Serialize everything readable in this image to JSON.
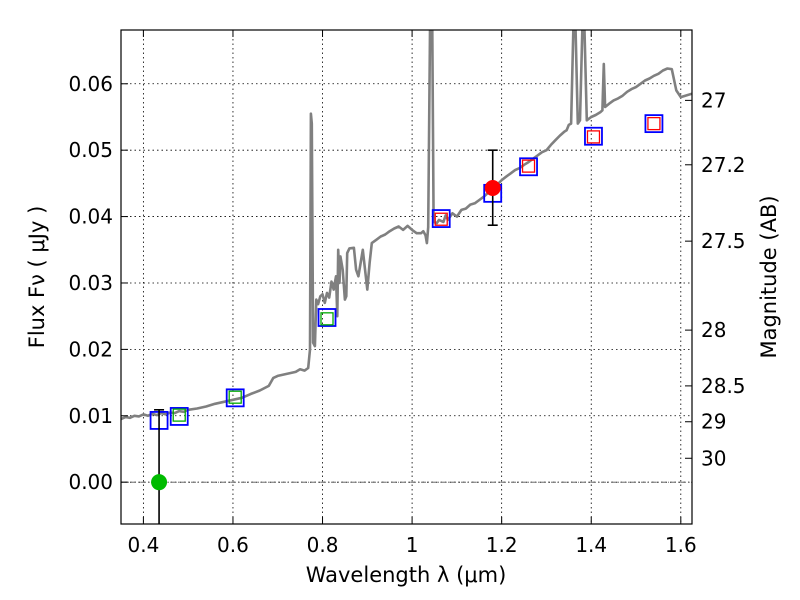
{
  "chart_data": {
    "type": "scatter",
    "xlabel": "Wavelength  λ (μm)",
    "ylabel": "Flux  Fν  ( μJy )",
    "ylabel2": "Magnitude (AB)",
    "xlim": [
      0.35,
      1.625
    ],
    "ylim": [
      -0.0063,
      0.0681
    ],
    "grid": true,
    "x_ticks": [
      0.4,
      0.6,
      0.8,
      1.0,
      1.2,
      1.4,
      1.6
    ],
    "x_tick_labels": [
      "0.4",
      "0.6",
      "0.8",
      "1",
      "1.2",
      "1.4",
      "1.6"
    ],
    "y_ticks": [
      0.0,
      0.01,
      0.02,
      0.03,
      0.04,
      0.05,
      0.06
    ],
    "y_tick_labels": [
      "0.00",
      "0.01",
      "0.02",
      "0.03",
      "0.04",
      "0.05",
      "0.06"
    ],
    "mag_ticks": [
      {
        "label": "27",
        "flux": 0.0575
      },
      {
        "label": "27.2",
        "flux": 0.0478
      },
      {
        "label": "27.5",
        "flux": 0.0363
      },
      {
        "label": "28",
        "flux": 0.0229
      },
      {
        "label": "28.5",
        "flux": 0.0145
      },
      {
        "label": "29",
        "flux": 0.0091
      },
      {
        "label": "30",
        "flux": 0.0036
      }
    ],
    "series": [
      {
        "name": "model spectrum",
        "style": "line",
        "color": "#808080",
        "points": [
          [
            0.35,
            0.0095
          ],
          [
            0.36,
            0.0098
          ],
          [
            0.37,
            0.0097
          ],
          [
            0.38,
            0.01
          ],
          [
            0.39,
            0.0099
          ],
          [
            0.4,
            0.0102
          ],
          [
            0.41,
            0.01
          ],
          [
            0.42,
            0.0103
          ],
          [
            0.43,
            0.0101
          ],
          [
            0.44,
            0.0104
          ],
          [
            0.45,
            0.0102
          ],
          [
            0.46,
            0.0105
          ],
          [
            0.47,
            0.0104
          ],
          [
            0.48,
            0.0107
          ],
          [
            0.49,
            0.0106
          ],
          [
            0.5,
            0.0109
          ],
          [
            0.52,
            0.0111
          ],
          [
            0.54,
            0.0114
          ],
          [
            0.56,
            0.0118
          ],
          [
            0.58,
            0.0121
          ],
          [
            0.6,
            0.0124
          ],
          [
            0.62,
            0.0127
          ],
          [
            0.64,
            0.0133
          ],
          [
            0.66,
            0.0138
          ],
          [
            0.68,
            0.0145
          ],
          [
            0.69,
            0.0157
          ],
          [
            0.7,
            0.016
          ],
          [
            0.72,
            0.0163
          ],
          [
            0.74,
            0.0166
          ],
          [
            0.75,
            0.017
          ],
          [
            0.76,
            0.0168
          ],
          [
            0.768,
            0.0172
          ],
          [
            0.772,
            0.02
          ],
          [
            0.774,
            0.0555
          ],
          [
            0.776,
            0.054
          ],
          [
            0.779,
            0.021
          ],
          [
            0.783,
            0.0205
          ],
          [
            0.786,
            0.0275
          ],
          [
            0.79,
            0.0268
          ],
          [
            0.795,
            0.028
          ],
          [
            0.8,
            0.0283
          ],
          [
            0.805,
            0.027
          ],
          [
            0.81,
            0.0285
          ],
          [
            0.815,
            0.0278
          ],
          [
            0.82,
            0.0302
          ],
          [
            0.825,
            0.029
          ],
          [
            0.83,
            0.031
          ],
          [
            0.833,
            0.025
          ],
          [
            0.835,
            0.035
          ],
          [
            0.838,
            0.03
          ],
          [
            0.84,
            0.034
          ],
          [
            0.845,
            0.032
          ],
          [
            0.85,
            0.0275
          ],
          [
            0.853,
            0.028
          ],
          [
            0.855,
            0.0345
          ],
          [
            0.86,
            0.0352
          ],
          [
            0.87,
            0.0353
          ],
          [
            0.875,
            0.032
          ],
          [
            0.88,
            0.031
          ],
          [
            0.885,
            0.033
          ],
          [
            0.89,
            0.035
          ],
          [
            0.9,
            0.029
          ],
          [
            0.905,
            0.033
          ],
          [
            0.91,
            0.036
          ],
          [
            0.92,
            0.0365
          ],
          [
            0.93,
            0.037
          ],
          [
            0.94,
            0.0373
          ],
          [
            0.95,
            0.0378
          ],
          [
            0.96,
            0.0382
          ],
          [
            0.97,
            0.0385
          ],
          [
            0.98,
            0.038
          ],
          [
            0.99,
            0.0386
          ],
          [
            1.0,
            0.038
          ],
          [
            1.01,
            0.0375
          ],
          [
            1.02,
            0.0375
          ],
          [
            1.025,
            0.0378
          ],
          [
            1.03,
            0.0372
          ],
          [
            1.033,
            0.036
          ],
          [
            1.036,
            0.0384
          ],
          [
            1.04,
            0.068
          ],
          [
            1.045,
            0.068
          ],
          [
            1.048,
            0.0392
          ],
          [
            1.055,
            0.039
          ],
          [
            1.06,
            0.0395
          ],
          [
            1.07,
            0.0392
          ],
          [
            1.075,
            0.0402
          ],
          [
            1.08,
            0.0395
          ],
          [
            1.09,
            0.0405
          ],
          [
            1.1,
            0.04
          ],
          [
            1.11,
            0.041
          ],
          [
            1.12,
            0.0412
          ],
          [
            1.13,
            0.0418
          ],
          [
            1.14,
            0.042
          ],
          [
            1.15,
            0.0425
          ],
          [
            1.16,
            0.043
          ],
          [
            1.17,
            0.0436
          ],
          [
            1.18,
            0.0442
          ],
          [
            1.19,
            0.0448
          ],
          [
            1.2,
            0.0455
          ],
          [
            1.21,
            0.046
          ],
          [
            1.22,
            0.0465
          ],
          [
            1.23,
            0.047
          ],
          [
            1.24,
            0.0473
          ],
          [
            1.25,
            0.0478
          ],
          [
            1.26,
            0.0482
          ],
          [
            1.27,
            0.0487
          ],
          [
            1.28,
            0.0492
          ],
          [
            1.29,
            0.0497
          ],
          [
            1.3,
            0.05
          ],
          [
            1.31,
            0.0508
          ],
          [
            1.32,
            0.0515
          ],
          [
            1.33,
            0.0522
          ],
          [
            1.34,
            0.0528
          ],
          [
            1.345,
            0.053
          ],
          [
            1.35,
            0.0538
          ],
          [
            1.355,
            0.054
          ],
          [
            1.36,
            0.068
          ],
          [
            1.365,
            0.068
          ],
          [
            1.37,
            0.054
          ],
          [
            1.375,
            0.0545
          ],
          [
            1.38,
            0.068
          ],
          [
            1.385,
            0.068
          ],
          [
            1.39,
            0.0545
          ],
          [
            1.4,
            0.055
          ],
          [
            1.41,
            0.0553
          ],
          [
            1.42,
            0.0557
          ],
          [
            1.425,
            0.056
          ],
          [
            1.428,
            0.063
          ],
          [
            1.431,
            0.0565
          ],
          [
            1.44,
            0.057
          ],
          [
            1.45,
            0.0575
          ],
          [
            1.46,
            0.0578
          ],
          [
            1.47,
            0.0582
          ],
          [
            1.48,
            0.0588
          ],
          [
            1.49,
            0.0592
          ],
          [
            1.5,
            0.0595
          ],
          [
            1.51,
            0.06
          ],
          [
            1.52,
            0.0605
          ],
          [
            1.53,
            0.0608
          ],
          [
            1.54,
            0.0612
          ],
          [
            1.55,
            0.0615
          ],
          [
            1.56,
            0.062
          ],
          [
            1.57,
            0.0623
          ],
          [
            1.58,
            0.0622
          ],
          [
            1.59,
            0.059
          ],
          [
            1.6,
            0.058
          ],
          [
            1.61,
            0.0582
          ],
          [
            1.625,
            0.0585
          ]
        ]
      },
      {
        "name": "model photometry (blue squares)",
        "style": "open-square",
        "color": "#0000ff",
        "x": [
          0.435,
          0.48,
          0.605,
          0.81,
          1.065,
          1.18,
          1.26,
          1.405,
          1.54
        ],
        "y": [
          0.0093,
          0.0099,
          0.0127,
          0.0248,
          0.0397,
          0.0435,
          0.0475,
          0.0521,
          0.054
        ]
      },
      {
        "name": "model photometry (green squares)",
        "style": "open-square-small",
        "color": "#00aa00",
        "x": [
          0.48,
          0.605,
          0.81
        ],
        "y": [
          0.0101,
          0.0128,
          0.0246
        ]
      },
      {
        "name": "model photometry (red squares)",
        "style": "open-square-small",
        "color": "#ff0000",
        "x": [
          1.065,
          1.26,
          1.405,
          1.54
        ],
        "y": [
          0.0396,
          0.0476,
          0.052,
          0.054
        ]
      },
      {
        "name": "observed (green)",
        "style": "filled-circle",
        "color": "#00bb00",
        "x": [
          0.435
        ],
        "y": [
          0.0
        ],
        "yerr_low": [
          -0.0063
        ],
        "yerr_high": [
          0.0109
        ]
      },
      {
        "name": "observed (red)",
        "style": "filled-circle",
        "color": "#ff0000",
        "x": [
          1.18
        ],
        "y": [
          0.0443
        ],
        "yerr_low": [
          0.0387
        ],
        "yerr_high": [
          0.05
        ]
      }
    ]
  }
}
